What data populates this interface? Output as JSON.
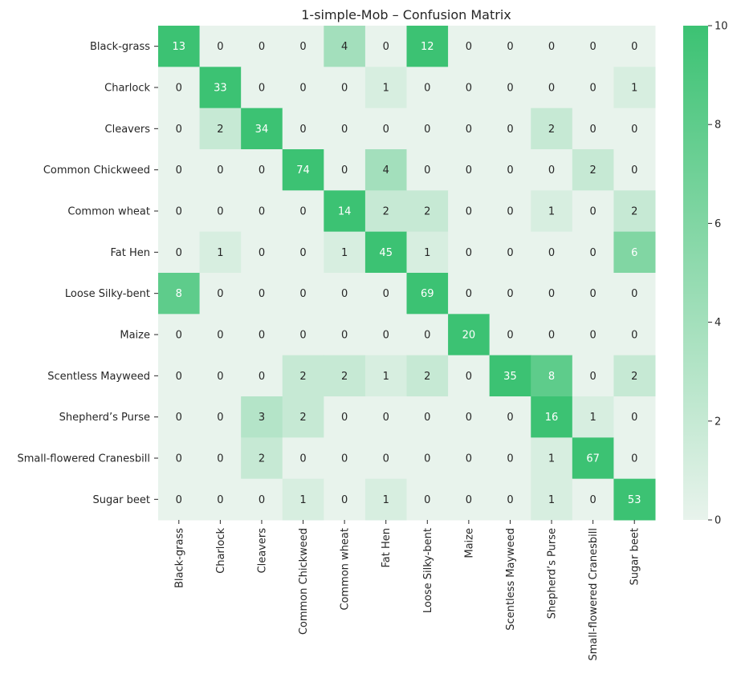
{
  "chart_data": {
    "type": "heatmap",
    "title": "1-simple-Mob – Confusion Matrix",
    "xlabel": "",
    "ylabel": "",
    "row_labels": [
      "Black-grass",
      "Charlock",
      "Cleavers",
      "Common Chickweed",
      "Common wheat",
      "Fat Hen",
      "Loose Silky-bent",
      "Maize",
      "Scentless Mayweed",
      "Shepherd’s Purse",
      "Small-flowered Cranesbill",
      "Sugar beet"
    ],
    "col_labels": [
      "Black-grass",
      "Charlock",
      "Cleavers",
      "Common Chickweed",
      "Common wheat",
      "Fat Hen",
      "Loose Silky-bent",
      "Maize",
      "Scentless Mayweed",
      "Shepherd’s Purse",
      "Small-flowered Cranesbill",
      "Sugar beet"
    ],
    "matrix": [
      [
        13,
        0,
        0,
        0,
        4,
        0,
        12,
        0,
        0,
        0,
        0,
        0
      ],
      [
        0,
        33,
        0,
        0,
        0,
        1,
        0,
        0,
        0,
        0,
        0,
        1
      ],
      [
        0,
        2,
        34,
        0,
        0,
        0,
        0,
        0,
        0,
        2,
        0,
        0
      ],
      [
        0,
        0,
        0,
        74,
        0,
        4,
        0,
        0,
        0,
        0,
        2,
        0
      ],
      [
        0,
        0,
        0,
        0,
        14,
        2,
        2,
        0,
        0,
        1,
        0,
        2
      ],
      [
        0,
        1,
        0,
        0,
        1,
        45,
        1,
        0,
        0,
        0,
        0,
        6
      ],
      [
        8,
        0,
        0,
        0,
        0,
        0,
        69,
        0,
        0,
        0,
        0,
        0
      ],
      [
        0,
        0,
        0,
        0,
        0,
        0,
        0,
        20,
        0,
        0,
        0,
        0
      ],
      [
        0,
        0,
        0,
        2,
        2,
        1,
        2,
        0,
        35,
        8,
        0,
        2
      ],
      [
        0,
        0,
        3,
        2,
        0,
        0,
        0,
        0,
        0,
        16,
        1,
        0
      ],
      [
        0,
        0,
        2,
        0,
        0,
        0,
        0,
        0,
        0,
        1,
        67,
        0
      ],
      [
        0,
        0,
        0,
        1,
        0,
        1,
        0,
        0,
        0,
        1,
        0,
        53
      ]
    ],
    "color_range": [
      0,
      10
    ],
    "colorbar_ticks": [
      0,
      2,
      4,
      6,
      8,
      10
    ],
    "colors": {
      "low": "#e8f3ec",
      "high": "#3cc273",
      "text_dark": "#262626",
      "text_light": "#ffffff"
    },
    "grid": false,
    "legend": "colorbar-right"
  }
}
